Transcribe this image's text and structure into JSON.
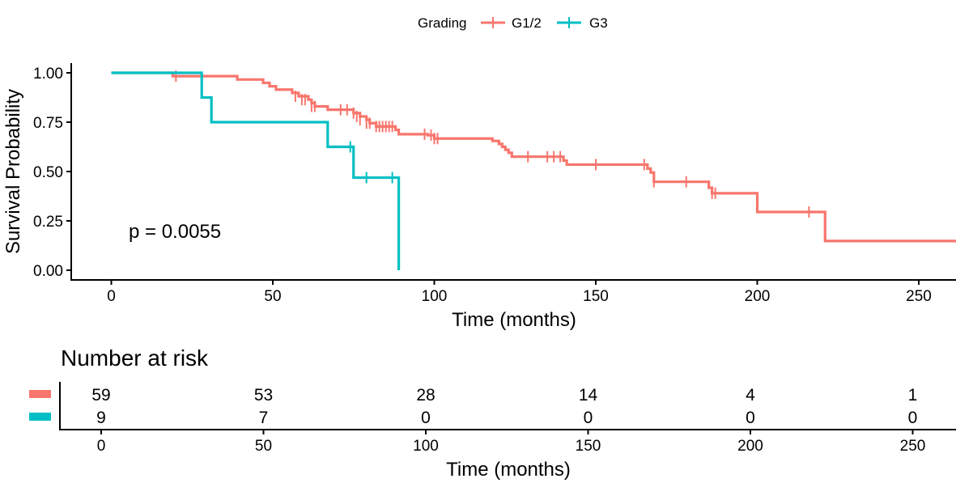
{
  "colors": {
    "g12": "#F8766D",
    "g3": "#00BFC4",
    "axis": "#000000"
  },
  "legend": {
    "title": "Grading",
    "items": [
      "G1/2",
      "G3"
    ]
  },
  "p_value": "p = 0.0055",
  "risk_table": {
    "title": "Number at risk",
    "rows": [
      {
        "series": "G1/2",
        "counts": [
          "59",
          "53",
          "28",
          "14",
          "4",
          "1"
        ]
      },
      {
        "series": "G3",
        "counts": [
          "9",
          "7",
          "0",
          "0",
          "0",
          "0"
        ]
      }
    ],
    "xticks": [
      0,
      50,
      100,
      150,
      200,
      250
    ],
    "xlabel": "Time (months)"
  },
  "chart_data": {
    "type": "line",
    "subtype": "kaplan-meier step",
    "title": "",
    "xlabel": "Time (months)",
    "ylabel": "Survival Probability",
    "xlim": [
      -12,
      262
    ],
    "ylim": [
      -0.05,
      1.05
    ],
    "xticks": [
      0,
      50,
      100,
      150,
      200,
      250
    ],
    "yticks": [
      0.0,
      0.25,
      0.5,
      0.75,
      1.0
    ],
    "ytick_labels": [
      "0.00",
      "0.25",
      "0.50",
      "0.75",
      "1.00"
    ],
    "series": [
      {
        "name": "G1/2",
        "steps": [
          [
            0,
            1.0
          ],
          [
            19,
            0.983
          ],
          [
            39,
            0.966
          ],
          [
            47,
            0.949
          ],
          [
            49,
            0.932
          ],
          [
            51,
            0.915
          ],
          [
            56,
            0.898
          ],
          [
            58,
            0.881
          ],
          [
            61,
            0.864
          ],
          [
            62,
            0.847
          ],
          [
            63,
            0.83
          ],
          [
            67,
            0.813
          ],
          [
            75,
            0.796
          ],
          [
            77,
            0.779
          ],
          [
            79,
            0.762
          ],
          [
            80,
            0.745
          ],
          [
            82,
            0.728
          ],
          [
            88,
            0.711
          ],
          [
            89,
            0.689
          ],
          [
            98,
            0.684
          ],
          [
            100,
            0.667
          ],
          [
            118,
            0.655
          ],
          [
            120,
            0.64
          ],
          [
            121,
            0.625
          ],
          [
            122,
            0.61
          ],
          [
            123,
            0.595
          ],
          [
            124,
            0.575
          ],
          [
            140,
            0.555
          ],
          [
            141,
            0.535
          ],
          [
            166,
            0.515
          ],
          [
            167,
            0.495
          ],
          [
            168,
            0.448
          ],
          [
            185,
            0.418
          ],
          [
            186,
            0.39
          ],
          [
            200,
            0.295
          ],
          [
            221,
            0.148
          ],
          [
            262,
            0.148
          ]
        ],
        "censors": [
          [
            20,
            0.983
          ],
          [
            57,
            0.881
          ],
          [
            59,
            0.864
          ],
          [
            60,
            0.864
          ],
          [
            62,
            0.83
          ],
          [
            63,
            0.83
          ],
          [
            71,
            0.813
          ],
          [
            73,
            0.813
          ],
          [
            75,
            0.796
          ],
          [
            76,
            0.779
          ],
          [
            77,
            0.762
          ],
          [
            79,
            0.745
          ],
          [
            80,
            0.745
          ],
          [
            82,
            0.728
          ],
          [
            83,
            0.728
          ],
          [
            84,
            0.728
          ],
          [
            85,
            0.728
          ],
          [
            86,
            0.728
          ],
          [
            87,
            0.728
          ],
          [
            97,
            0.689
          ],
          [
            99,
            0.684
          ],
          [
            100,
            0.667
          ],
          [
            101,
            0.667
          ],
          [
            129,
            0.575
          ],
          [
            135,
            0.575
          ],
          [
            137,
            0.575
          ],
          [
            139,
            0.575
          ],
          [
            150,
            0.535
          ],
          [
            165,
            0.535
          ],
          [
            168,
            0.448
          ],
          [
            178,
            0.448
          ],
          [
            186,
            0.39
          ],
          [
            187,
            0.39
          ],
          [
            216,
            0.295
          ]
        ]
      },
      {
        "name": "G3",
        "steps": [
          [
            0,
            1.0
          ],
          [
            28,
            0.875
          ],
          [
            31,
            0.75
          ],
          [
            67,
            0.625
          ],
          [
            75,
            0.469
          ],
          [
            89,
            0.0
          ]
        ],
        "censors": [
          [
            74,
            0.625
          ],
          [
            79,
            0.469
          ],
          [
            87,
            0.469
          ]
        ]
      }
    ],
    "annotations": [
      "p = 0.0055"
    ],
    "legend_position": "top"
  }
}
